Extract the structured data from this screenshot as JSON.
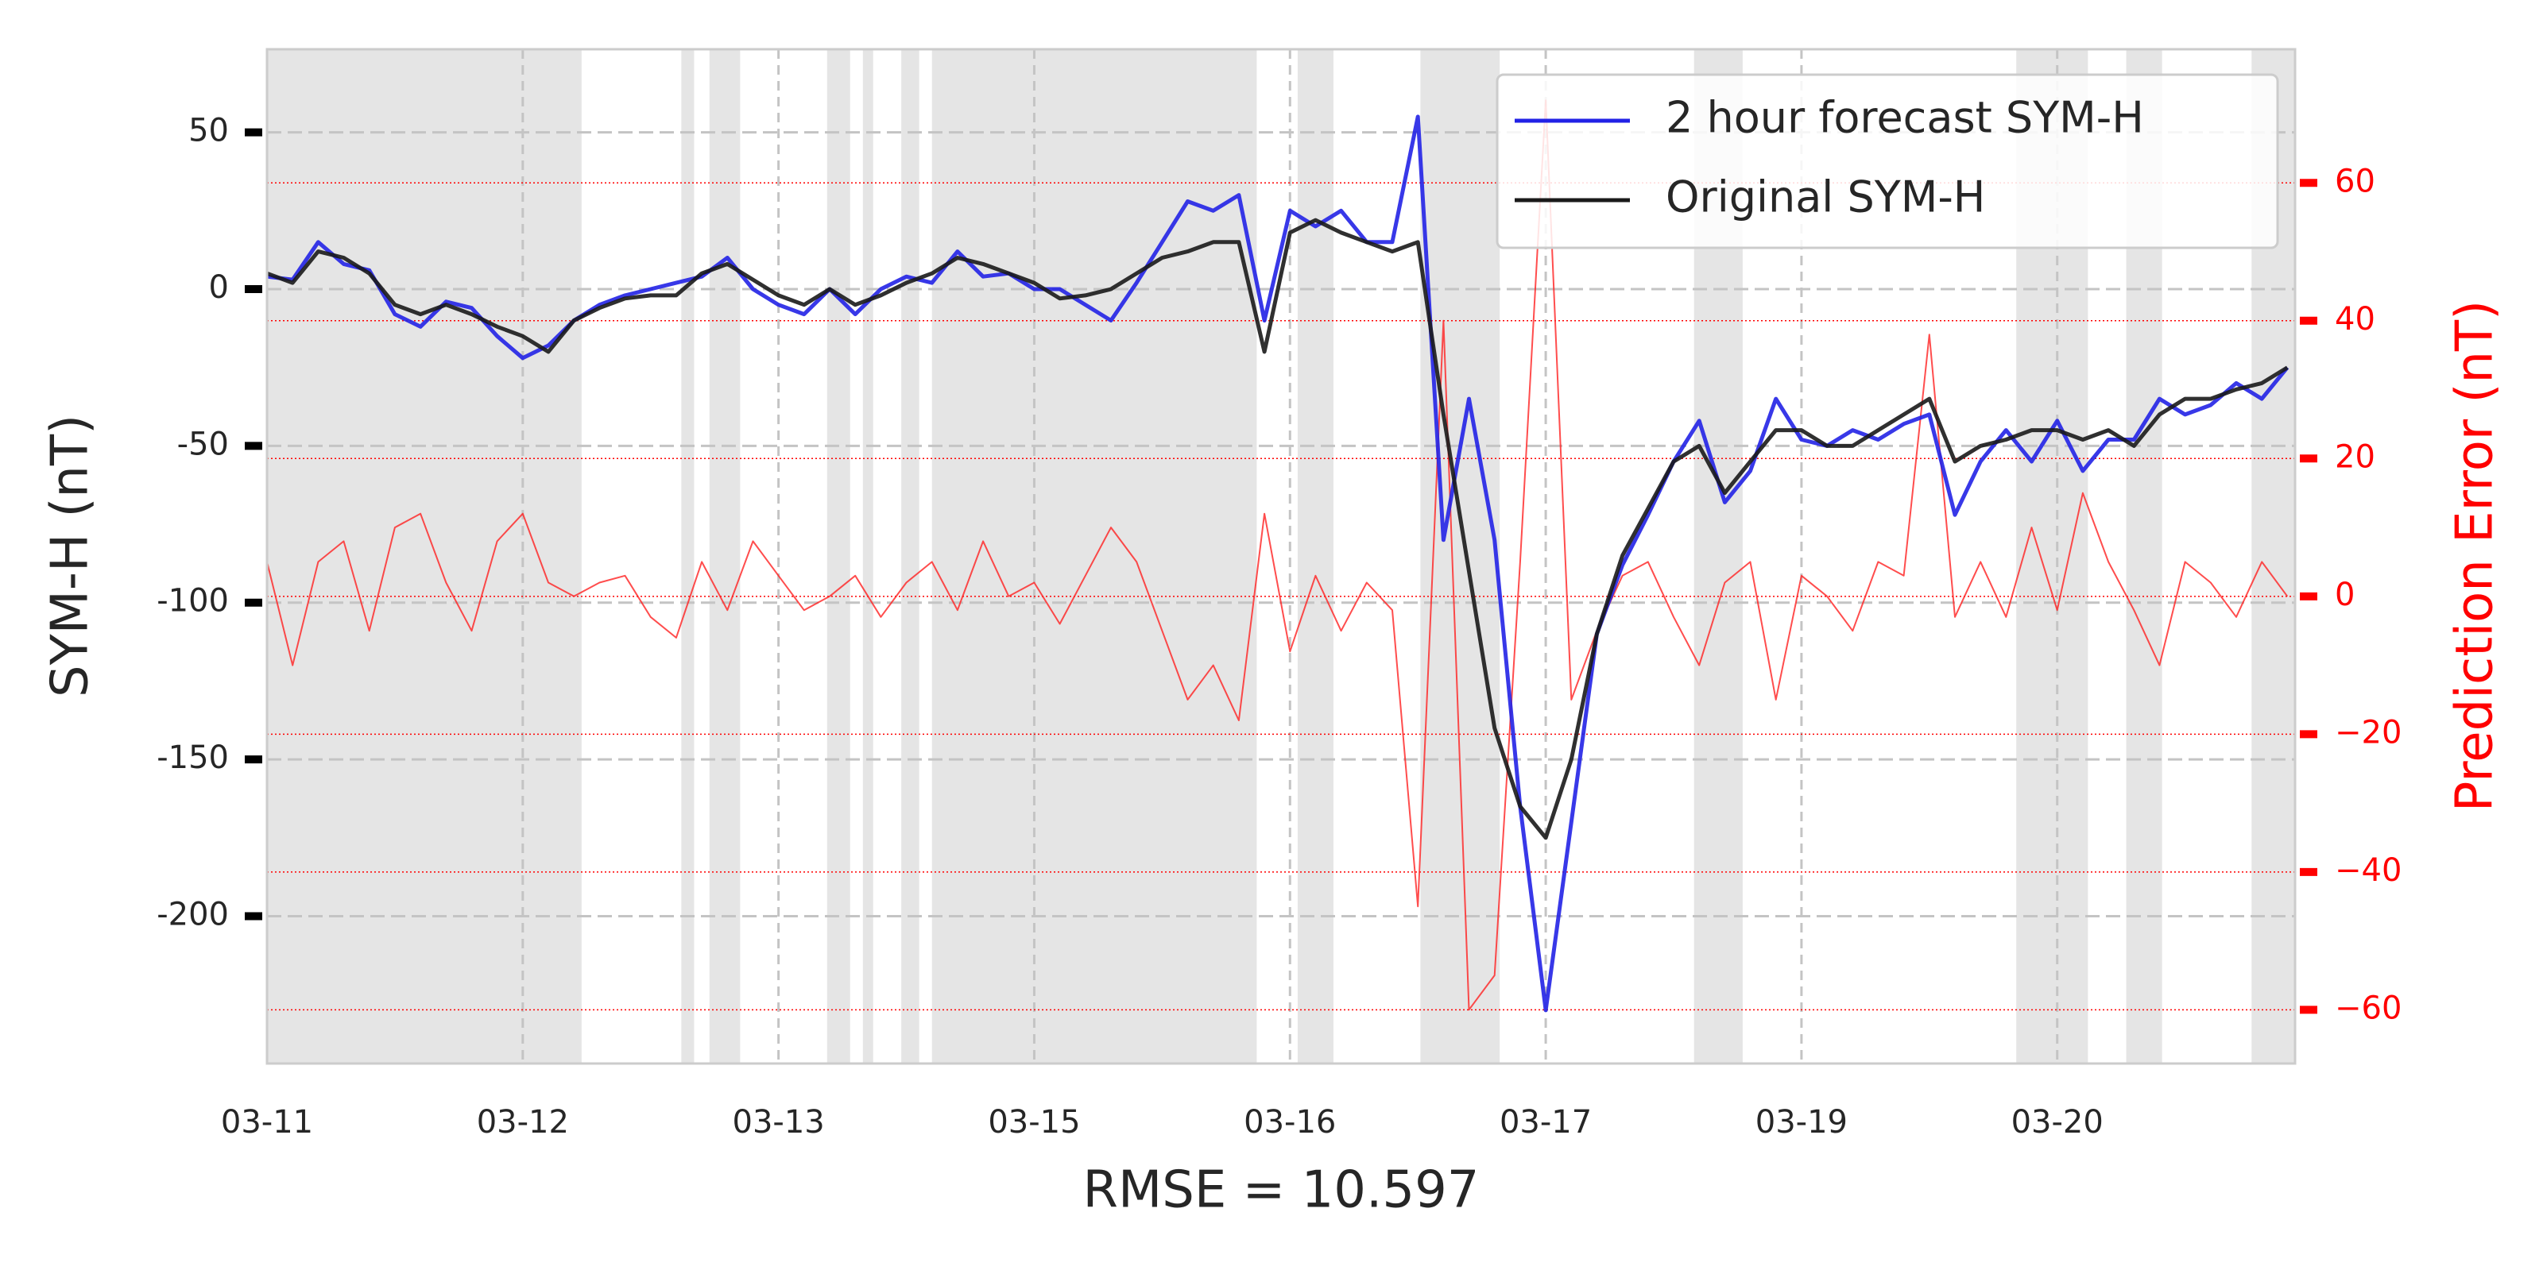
{
  "chart_data": {
    "type": "line",
    "xlabel": "RMSE = 10.597",
    "ylabel": "SYM-H (nT)",
    "y2label": "Prediction Error (nT)",
    "xlim": [
      0,
      7.93
    ],
    "xticks": [
      {
        "value": 0,
        "label": "03-11"
      },
      {
        "value": 1,
        "label": "03-12"
      },
      {
        "value": 2,
        "label": "03-13"
      },
      {
        "value": 3,
        "label": "03-15"
      },
      {
        "value": 4,
        "label": "03-16"
      },
      {
        "value": 5,
        "label": "03-17"
      },
      {
        "value": 6,
        "label": "03-19"
      },
      {
        "value": 7,
        "label": "03-20"
      }
    ],
    "ylim": [
      -247,
      76.5
    ],
    "yticks": [
      -200,
      -150,
      -100,
      -50,
      0,
      50
    ],
    "y2lim": [
      -67.8,
      79.4
    ],
    "y2ticks": [
      {
        "value": -60,
        "label": "−60"
      },
      {
        "value": -40,
        "label": "−40"
      },
      {
        "value": -20,
        "label": "−20"
      },
      0,
      20,
      40,
      60
    ],
    "grid": true,
    "legend": "upper right",
    "shaded_spans": [
      [
        0,
        1.23
      ],
      [
        1.62,
        1.67
      ],
      [
        1.73,
        1.85
      ],
      [
        2.19,
        2.28
      ],
      [
        2.33,
        2.37
      ],
      [
        2.48,
        2.55
      ],
      [
        2.6,
        3.87
      ],
      [
        4.03,
        4.17
      ],
      [
        4.51,
        4.82
      ],
      [
        5.58,
        5.77
      ],
      [
        6.84,
        7.12
      ],
      [
        7.27,
        7.41
      ],
      [
        7.76,
        7.93
      ]
    ],
    "x": [
      0,
      0.1,
      0.2,
      0.3,
      0.4,
      0.5,
      0.6,
      0.7,
      0.8,
      0.9,
      1.0,
      1.1,
      1.2,
      1.3,
      1.4,
      1.5,
      1.6,
      1.7,
      1.8,
      1.9,
      2.0,
      2.1,
      2.2,
      2.3,
      2.4,
      2.5,
      2.6,
      2.7,
      2.8,
      2.9,
      3.0,
      3.1,
      3.2,
      3.3,
      3.4,
      3.5,
      3.6,
      3.7,
      3.8,
      3.9,
      4.0,
      4.1,
      4.2,
      4.3,
      4.4,
      4.5,
      4.6,
      4.7,
      4.8,
      4.9,
      5.0,
      5.1,
      5.2,
      5.3,
      5.4,
      5.5,
      5.6,
      5.7,
      5.8,
      5.9,
      6.0,
      6.1,
      6.2,
      6.3,
      6.4,
      6.5,
      6.6,
      6.7,
      6.8,
      6.9,
      7.0,
      7.1,
      7.2,
      7.3,
      7.4,
      7.5,
      7.6,
      7.7,
      7.8,
      7.9
    ],
    "series": [
      {
        "name": "2 hour forecast SYM-H",
        "color": "#2222e6",
        "values": [
          4,
          3,
          15,
          8,
          6,
          -8,
          -12,
          -4,
          -6,
          -15,
          -22,
          -18,
          -10,
          -5,
          -2,
          0,
          2,
          4,
          10,
          0,
          -5,
          -8,
          0,
          -8,
          0,
          4,
          2,
          12,
          4,
          5,
          0,
          0,
          -5,
          -10,
          2,
          15,
          28,
          25,
          30,
          -10,
          25,
          20,
          25,
          15,
          15,
          55,
          -80,
          -35,
          -80,
          -165,
          -230,
          -170,
          -110,
          -88,
          -72,
          -55,
          -42,
          -68,
          -58,
          -35,
          -48,
          -50,
          -45,
          -48,
          -43,
          -40,
          -72,
          -55,
          -45,
          -55,
          -42,
          -58,
          -48,
          -48,
          -35,
          -40,
          -37,
          -30,
          -35,
          -25
        ]
      },
      {
        "name": "Original SYM-H",
        "color": "#1a1a1a",
        "values": [
          5,
          2,
          12,
          10,
          5,
          -5,
          -8,
          -5,
          -8,
          -12,
          -15,
          -20,
          -10,
          -6,
          -3,
          -2,
          -2,
          5,
          8,
          3,
          -2,
          -5,
          0,
          -5,
          -2,
          2,
          5,
          10,
          8,
          5,
          2,
          -3,
          -2,
          0,
          5,
          10,
          12,
          15,
          15,
          -20,
          18,
          22,
          18,
          15,
          12,
          15,
          -40,
          -90,
          -140,
          -165,
          -175,
          -150,
          -110,
          -85,
          -70,
          -55,
          -50,
          -65,
          -55,
          -45,
          -45,
          -50,
          -50,
          -45,
          -40,
          -35,
          -55,
          -50,
          -48,
          -45,
          -45,
          -48,
          -45,
          -50,
          -40,
          -35,
          -35,
          -32,
          -30,
          -25
        ]
      },
      {
        "color": "#ff2020",
        "axis": "y2",
        "values": [
          5,
          -10,
          5,
          8,
          -5,
          10,
          12,
          2,
          -5,
          8,
          12,
          2,
          0,
          2,
          3,
          -3,
          -6,
          5,
          -2,
          8,
          3,
          -2,
          0,
          3,
          -3,
          2,
          5,
          -2,
          8,
          0,
          2,
          -4,
          3,
          10,
          5,
          -5,
          -15,
          -10,
          -18,
          12,
          -8,
          3,
          -5,
          2,
          -2,
          -45,
          40,
          -60,
          -55,
          5,
          72,
          -15,
          -5,
          3,
          5,
          -3,
          -10,
          2,
          5,
          -15,
          3,
          0,
          -5,
          5,
          3,
          38,
          -3,
          5,
          -3,
          10,
          -2,
          15,
          5,
          -2,
          -10,
          5,
          2,
          -3,
          5,
          0
        ]
      }
    ]
  }
}
